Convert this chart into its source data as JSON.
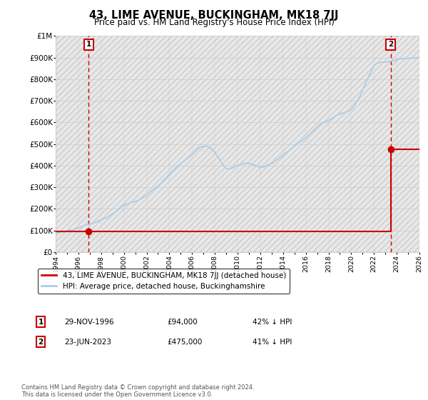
{
  "title": "43, LIME AVENUE, BUCKINGHAM, MK18 7JJ",
  "subtitle": "Price paid vs. HM Land Registry's House Price Index (HPI)",
  "ylim": [
    0,
    1000000
  ],
  "yticks": [
    0,
    100000,
    200000,
    300000,
    400000,
    500000,
    600000,
    700000,
    800000,
    900000,
    1000000
  ],
  "ytick_labels": [
    "£0",
    "£100K",
    "£200K",
    "£300K",
    "£400K",
    "£500K",
    "£600K",
    "£700K",
    "£800K",
    "£900K",
    "£1M"
  ],
  "xlim": [
    1994,
    2026
  ],
  "hpi_color": "#aacce8",
  "price_color": "#cc0000",
  "point1_year": 1996.91,
  "point1_price": 94000,
  "point2_year": 2023.47,
  "point2_price": 475000,
  "legend_line1": "43, LIME AVENUE, BUCKINGHAM, MK18 7JJ (detached house)",
  "legend_line2": "HPI: Average price, detached house, Buckinghamshire",
  "table_row1": [
    "1",
    "29-NOV-1996",
    "£94,000",
    "42% ↓ HPI"
  ],
  "table_row2": [
    "2",
    "23-JUN-2023",
    "£475,000",
    "41% ↓ HPI"
  ],
  "footnote": "Contains HM Land Registry data © Crown copyright and database right 2024.\nThis data is licensed under the Open Government Licence v3.0.",
  "grid_color": "#cccccc",
  "hatch_color": "#e8e8e8",
  "dashed_color": "#cc0000",
  "hpi_waypoints_x": [
    1994,
    1995,
    1996,
    1997,
    1998,
    1999,
    2000,
    2001,
    2002,
    2003,
    2004,
    2005,
    2006,
    2007,
    2008,
    2009,
    2010,
    2011,
    2012,
    2013,
    2014,
    2015,
    2016,
    2017,
    2018,
    2019,
    2020,
    2021,
    2022,
    2023,
    2024,
    2025,
    2026
  ],
  "hpi_waypoints_y": [
    88000,
    98000,
    112000,
    130000,
    148000,
    175000,
    215000,
    235000,
    265000,
    305000,
    360000,
    410000,
    450000,
    490000,
    460000,
    390000,
    400000,
    410000,
    395000,
    410000,
    450000,
    490000,
    530000,
    580000,
    610000,
    640000,
    660000,
    750000,
    860000,
    880000,
    890000,
    895000,
    900000
  ]
}
